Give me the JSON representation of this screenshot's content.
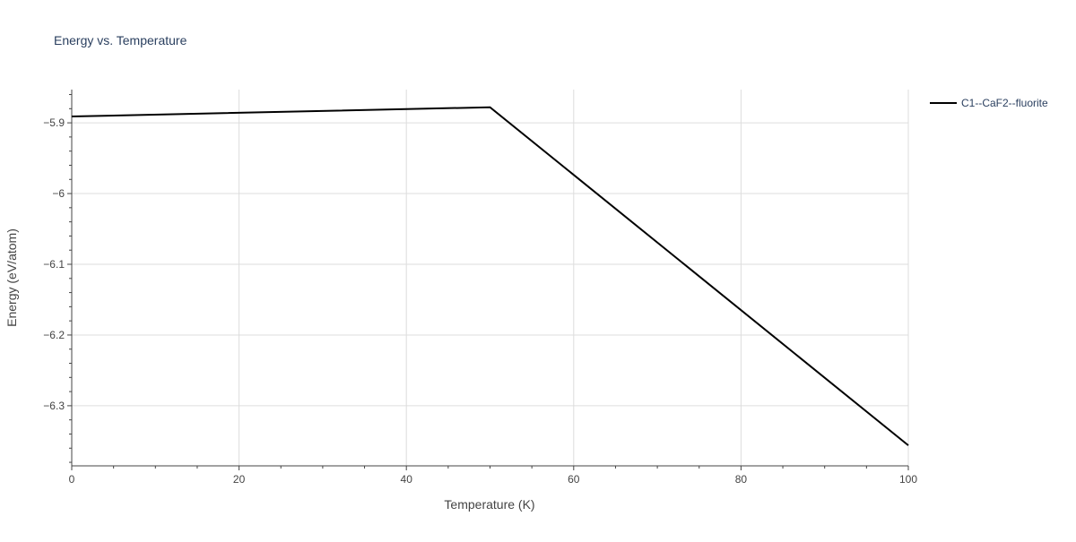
{
  "chart_data": {
    "type": "line",
    "title": "Energy vs. Temperature",
    "xlabel": "Temperature (K)",
    "ylabel": "Energy (eV/atom)",
    "xlim": [
      0,
      100
    ],
    "ylim": [
      -6.385,
      -5.853
    ],
    "x_ticks": [
      0,
      20,
      40,
      60,
      80,
      100
    ],
    "x_tick_labels": [
      "0",
      "20",
      "40",
      "60",
      "80",
      "100"
    ],
    "y_ticks": [
      -5.9,
      -6.0,
      -6.1,
      -6.2,
      -6.3
    ],
    "y_tick_labels": [
      "−5.9",
      "−6",
      "−6.1",
      "−6.2",
      "−6.3"
    ],
    "grid": true,
    "legend_position": "top-right",
    "series": [
      {
        "name": "C1--CaF2--fluorite",
        "color": "#000000",
        "x": [
          0,
          50,
          100
        ],
        "y": [
          -5.891,
          -5.878,
          -6.356
        ]
      }
    ]
  }
}
